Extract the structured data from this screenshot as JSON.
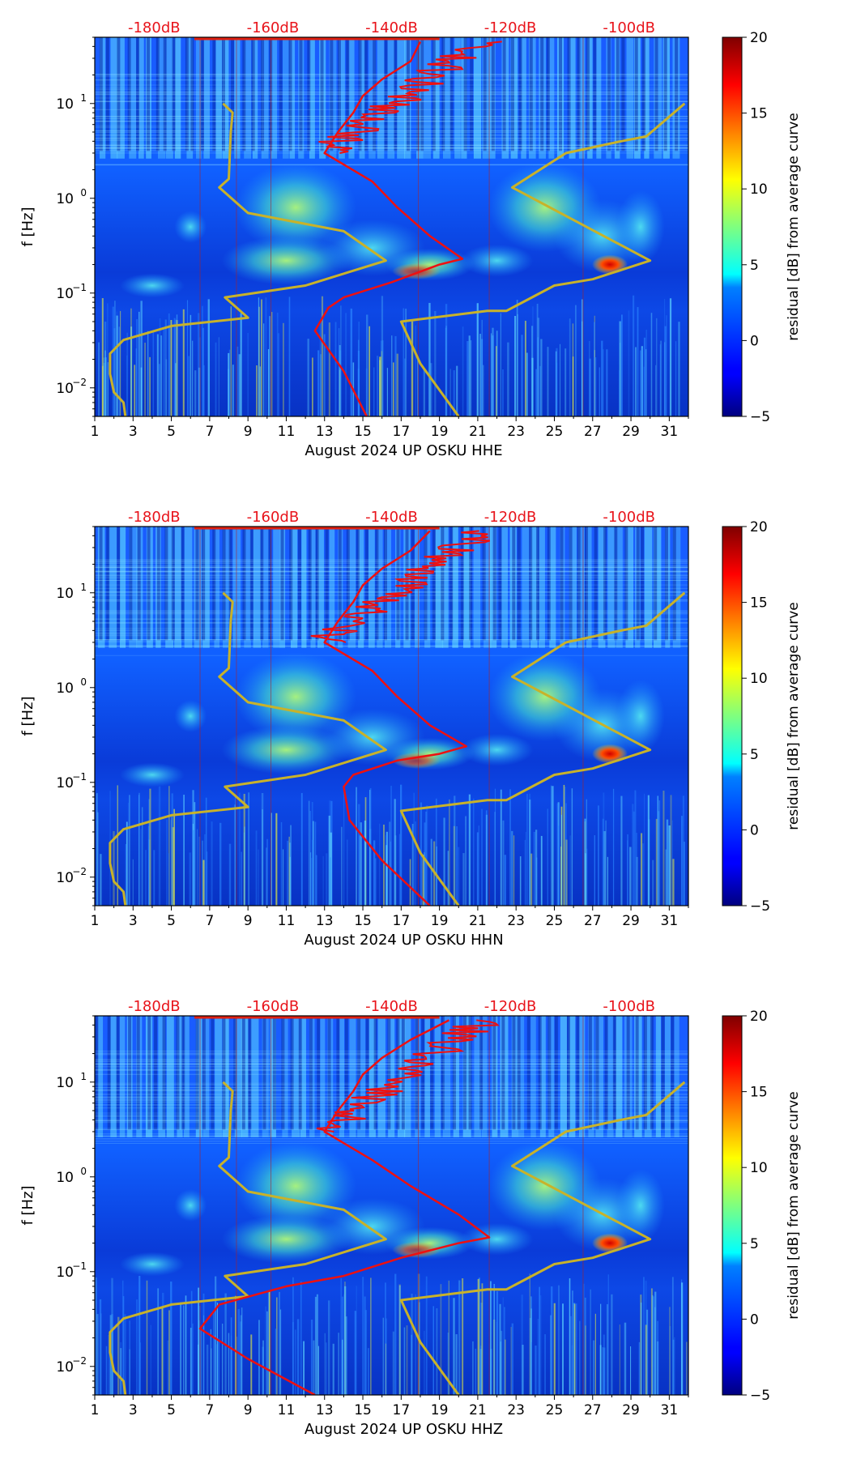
{
  "figure": {
    "colorbar_ticks": [
      -5,
      0,
      5,
      10,
      15,
      20
    ],
    "colorbar_label": "residual [dB] from average curve",
    "colorbar_range": [
      -5,
      20
    ]
  },
  "chart_data": [
    {
      "type": "heatmap",
      "panel": "HHE",
      "xlabel": "August 2024 UP OSKU  HHE",
      "ylabel": "f [Hz]",
      "xlim": [
        1,
        32
      ],
      "ylim_hz": [
        0.005,
        50
      ],
      "yscale": "log",
      "x_ticks": [
        "1",
        "3",
        "5",
        "7",
        "9",
        "11",
        "13",
        "15",
        "17",
        "19",
        "21",
        "23",
        "25",
        "27",
        "29",
        "31"
      ],
      "y_ticks": [
        "10^-2",
        "10^-1",
        "10^0",
        "10^1"
      ],
      "top_db_labels": [
        "-180dB",
        "-160dB",
        "-140dB",
        "-120dB",
        "-100dB"
      ],
      "db_axis_range": [
        -190,
        -90
      ],
      "series": [
        {
          "name": "yellow percentile curve",
          "points": [
            [
              2.6,
              0.005
            ],
            [
              2.5,
              0.007
            ],
            [
              2.0,
              0.009
            ],
            [
              1.8,
              0.014
            ],
            [
              1.8,
              0.023
            ],
            [
              2.5,
              0.032
            ],
            [
              5,
              0.045
            ],
            [
              9,
              0.055
            ],
            [
              7.8,
              0.09
            ],
            [
              12,
              0.12
            ],
            [
              16.2,
              0.22
            ],
            [
              14,
              0.45
            ],
            [
              9,
              0.7
            ],
            [
              7.5,
              1.3
            ],
            [
              8,
              1.6
            ],
            [
              8.1,
              5
            ],
            [
              8.2,
              8
            ],
            [
              7.7,
              10
            ]
          ]
        },
        {
          "name": "yellow percentile curve",
          "points": [
            [
              20,
              0.005
            ],
            [
              18,
              0.018
            ],
            [
              17,
              0.05
            ],
            [
              21.5,
              0.065
            ],
            [
              22.5,
              0.065
            ],
            [
              25,
              0.12
            ],
            [
              27,
              0.14
            ],
            [
              30,
              0.22
            ],
            [
              22.8,
              1.3
            ],
            [
              25.6,
              3.0
            ],
            [
              28.5,
              4.0
            ],
            [
              29.8,
              4.5
            ],
            [
              31.8,
              10
            ]
          ]
        },
        {
          "name": "red average curve",
          "points": [
            [
              15.2,
              0.005
            ],
            [
              14,
              0.015
            ],
            [
              12.5,
              0.04
            ],
            [
              13.2,
              0.07
            ],
            [
              14,
              0.09
            ],
            [
              16.5,
              0.13
            ],
            [
              19,
              0.2
            ],
            [
              20.2,
              0.23
            ],
            [
              18.5,
              0.4
            ],
            [
              16.8,
              0.8
            ],
            [
              15.5,
              1.5
            ],
            [
              13,
              3
            ],
            [
              13.7,
              5
            ],
            [
              14.5,
              8
            ],
            [
              15,
              12
            ],
            [
              16,
              18
            ],
            [
              17.5,
              28
            ],
            [
              18,
              45
            ]
          ]
        }
      ]
    },
    {
      "type": "heatmap",
      "panel": "HHN",
      "xlabel": "August 2024 UP OSKU  HHN",
      "ylabel": "f [Hz]",
      "xlim": [
        1,
        32
      ],
      "ylim_hz": [
        0.005,
        50
      ],
      "yscale": "log",
      "x_ticks": [
        "1",
        "3",
        "5",
        "7",
        "9",
        "11",
        "13",
        "15",
        "17",
        "19",
        "21",
        "23",
        "25",
        "27",
        "29",
        "31"
      ],
      "y_ticks": [
        "10^-2",
        "10^-1",
        "10^0",
        "10^1"
      ],
      "top_db_labels": [
        "-180dB",
        "-160dB",
        "-140dB",
        "-120dB",
        "-100dB"
      ],
      "db_axis_range": [
        -190,
        -90
      ],
      "series": [
        {
          "name": "yellow percentile curve",
          "points": [
            [
              2.6,
              0.005
            ],
            [
              2.5,
              0.007
            ],
            [
              2.0,
              0.009
            ],
            [
              1.8,
              0.014
            ],
            [
              1.8,
              0.023
            ],
            [
              2.5,
              0.032
            ],
            [
              5,
              0.045
            ],
            [
              9,
              0.055
            ],
            [
              7.8,
              0.09
            ],
            [
              12,
              0.12
            ],
            [
              16.2,
              0.22
            ],
            [
              14,
              0.45
            ],
            [
              9,
              0.7
            ],
            [
              7.5,
              1.3
            ],
            [
              8,
              1.6
            ],
            [
              8.1,
              5
            ],
            [
              8.2,
              8
            ],
            [
              7.7,
              10
            ]
          ]
        },
        {
          "name": "yellow percentile curve",
          "points": [
            [
              20,
              0.005
            ],
            [
              18,
              0.018
            ],
            [
              17,
              0.05
            ],
            [
              21.5,
              0.065
            ],
            [
              22.5,
              0.065
            ],
            [
              25,
              0.12
            ],
            [
              27,
              0.14
            ],
            [
              30,
              0.22
            ],
            [
              22.8,
              1.3
            ],
            [
              25.6,
              3.0
            ],
            [
              28.5,
              4.0
            ],
            [
              29.8,
              4.5
            ],
            [
              31.8,
              10
            ]
          ]
        },
        {
          "name": "red average curve",
          "points": [
            [
              18.5,
              0.005
            ],
            [
              16,
              0.015
            ],
            [
              14.3,
              0.04
            ],
            [
              14,
              0.09
            ],
            [
              14.5,
              0.12
            ],
            [
              16.8,
              0.17
            ],
            [
              19,
              0.2
            ],
            [
              20.4,
              0.24
            ],
            [
              18.5,
              0.4
            ],
            [
              16.8,
              0.8
            ],
            [
              15.5,
              1.5
            ],
            [
              13,
              3
            ],
            [
              13.7,
              5
            ],
            [
              14.5,
              8
            ],
            [
              15,
              12
            ],
            [
              16,
              18
            ],
            [
              17.5,
              28
            ],
            [
              18.5,
              45
            ]
          ]
        }
      ]
    },
    {
      "type": "heatmap",
      "panel": "HHZ",
      "xlabel": "August 2024 UP OSKU  HHZ",
      "ylabel": "f [Hz]",
      "xlim": [
        1,
        32
      ],
      "ylim_hz": [
        0.005,
        50
      ],
      "yscale": "log",
      "x_ticks": [
        "1",
        "3",
        "5",
        "7",
        "9",
        "11",
        "13",
        "15",
        "17",
        "19",
        "21",
        "23",
        "25",
        "27",
        "29",
        "31"
      ],
      "y_ticks": [
        "10^-2",
        "10^-1",
        "10^0",
        "10^1"
      ],
      "top_db_labels": [
        "-180dB",
        "-160dB",
        "-140dB",
        "-120dB",
        "-100dB"
      ],
      "db_axis_range": [
        -190,
        -90
      ],
      "series": [
        {
          "name": "yellow percentile curve",
          "points": [
            [
              2.6,
              0.005
            ],
            [
              2.5,
              0.007
            ],
            [
              2.0,
              0.009
            ],
            [
              1.8,
              0.014
            ],
            [
              1.8,
              0.023
            ],
            [
              2.5,
              0.032
            ],
            [
              5,
              0.045
            ],
            [
              9,
              0.055
            ],
            [
              7.8,
              0.09
            ],
            [
              12,
              0.12
            ],
            [
              16.2,
              0.22
            ],
            [
              14,
              0.45
            ],
            [
              9,
              0.7
            ],
            [
              7.5,
              1.3
            ],
            [
              8,
              1.6
            ],
            [
              8.1,
              5
            ],
            [
              8.2,
              8
            ],
            [
              7.7,
              10
            ]
          ]
        },
        {
          "name": "yellow percentile curve",
          "points": [
            [
              20,
              0.005
            ],
            [
              18,
              0.018
            ],
            [
              17,
              0.05
            ],
            [
              21.5,
              0.065
            ],
            [
              22.5,
              0.065
            ],
            [
              25,
              0.12
            ],
            [
              27,
              0.14
            ],
            [
              30,
              0.22
            ],
            [
              22.8,
              1.3
            ],
            [
              25.6,
              3.0
            ],
            [
              28.5,
              4.0
            ],
            [
              29.8,
              4.5
            ],
            [
              31.8,
              10
            ]
          ]
        },
        {
          "name": "red average curve",
          "points": [
            [
              12.5,
              0.005
            ],
            [
              9,
              0.012
            ],
            [
              6.5,
              0.025
            ],
            [
              7.5,
              0.045
            ],
            [
              11,
              0.07
            ],
            [
              14,
              0.09
            ],
            [
              17,
              0.14
            ],
            [
              20,
              0.2
            ],
            [
              21.6,
              0.23
            ],
            [
              20,
              0.4
            ],
            [
              17.5,
              0.8
            ],
            [
              15.5,
              1.5
            ],
            [
              13,
              3
            ],
            [
              13.7,
              5
            ],
            [
              14.5,
              8
            ],
            [
              15,
              12
            ],
            [
              16,
              18
            ],
            [
              17.5,
              28
            ],
            [
              19.5,
              45
            ]
          ]
        }
      ]
    }
  ]
}
